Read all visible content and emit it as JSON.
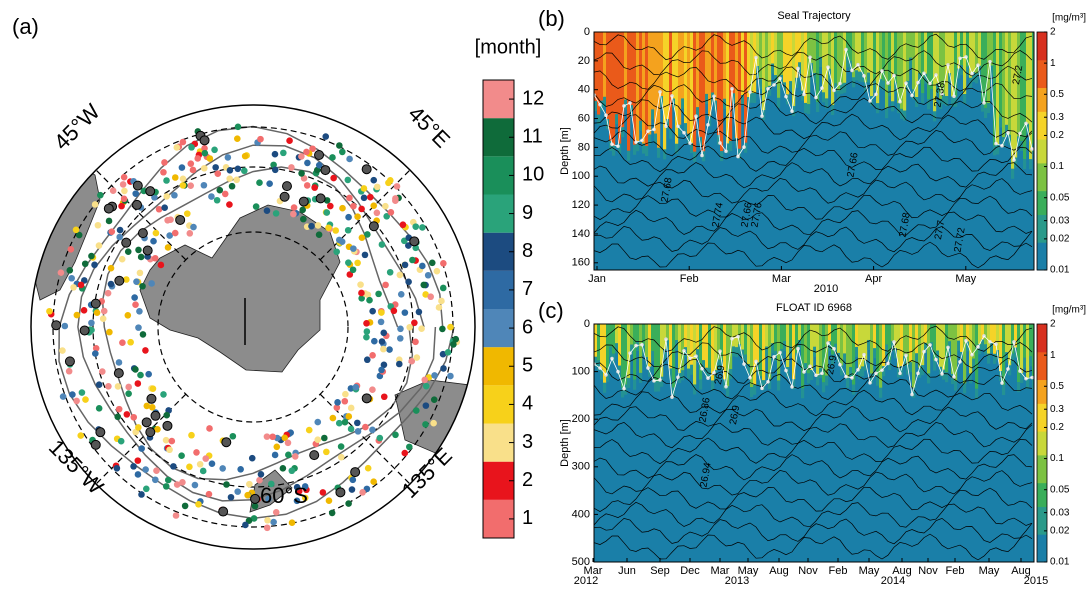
{
  "chart_data": [
    {
      "type": "map",
      "panel_label": "(a)",
      "colorbar": {
        "label": "[month]",
        "ticks": [
          1,
          2,
          3,
          4,
          5,
          6,
          7,
          8,
          9,
          10,
          11,
          12
        ],
        "lim": [
          0.5,
          12.5
        ],
        "colors": [
          "#f26d6d",
          "#e8141c",
          "#f9e08a",
          "#f7d11a",
          "#f0b800",
          "#4f86b8",
          "#2e6aa3",
          "#1c4b80",
          "#2aa37a",
          "#1a8f5a",
          "#0f6b3a",
          "#f28b8b"
        ]
      },
      "annotations": [
        "45°W",
        "45°E",
        "135°W",
        "135°E",
        "60°S"
      ]
    },
    {
      "type": "section",
      "panel_label": "(b)",
      "title": "Seal Trajectory",
      "ylabel": "Depth [m]",
      "ylim": [
        0,
        165
      ],
      "yticks": [
        0,
        20,
        40,
        60,
        80,
        100,
        120,
        140,
        160
      ],
      "categories": [
        "Jan",
        "Feb",
        "Mar",
        "Apr",
        "May"
      ],
      "year_labels": [
        "2010"
      ],
      "contour_labels": [
        "27.68",
        "27.74",
        "27.76",
        "27.66",
        "27.66",
        "27.68",
        "27.7",
        "27.72",
        "27.38",
        "27.2"
      ],
      "colorbar": {
        "label": "[mg/m³]",
        "ticks": [
          2,
          1,
          0.5,
          0.3,
          0.2,
          0.1,
          0.05,
          0.03,
          0.02,
          0.01
        ],
        "lim": [
          0.01,
          2
        ],
        "log": true,
        "colors": [
          "#1a7fa8",
          "#2a9a8a",
          "#3aae5a",
          "#7cc242",
          "#c8d83a",
          "#f5d328",
          "#f4a21e",
          "#ea5a1a",
          "#d7301f"
        ]
      }
    },
    {
      "type": "section",
      "panel_label": "(c)",
      "title": "FLOAT ID 6968",
      "ylabel": "Depth [m]",
      "ylim": [
        0,
        500
      ],
      "yticks": [
        0,
        100,
        200,
        300,
        400,
        500
      ],
      "categories": [
        "Mar",
        "Jun",
        "Sep",
        "Dec",
        "Mar",
        "May",
        "Aug",
        "Nov",
        "Feb",
        "May",
        "Aug",
        "Nov",
        "Feb",
        "May",
        "Aug"
      ],
      "year_labels": [
        "2012",
        "2013",
        "2014",
        "2015"
      ],
      "contour_labels": [
        "26.9",
        "26.86",
        "26.9",
        "26.94",
        "26.9"
      ],
      "colorbar": {
        "label": "[mg/m³]",
        "ticks": [
          2,
          1,
          0.5,
          0.3,
          0.2,
          0.1,
          0.05,
          0.03,
          0.02,
          0.01
        ],
        "lim": [
          0.01,
          2
        ],
        "log": true,
        "colors": [
          "#1a7fa8",
          "#2a9a8a",
          "#3aae5a",
          "#7cc242",
          "#c8d83a",
          "#f5d328",
          "#f4a21e",
          "#ea5a1a",
          "#d7301f"
        ]
      }
    }
  ]
}
